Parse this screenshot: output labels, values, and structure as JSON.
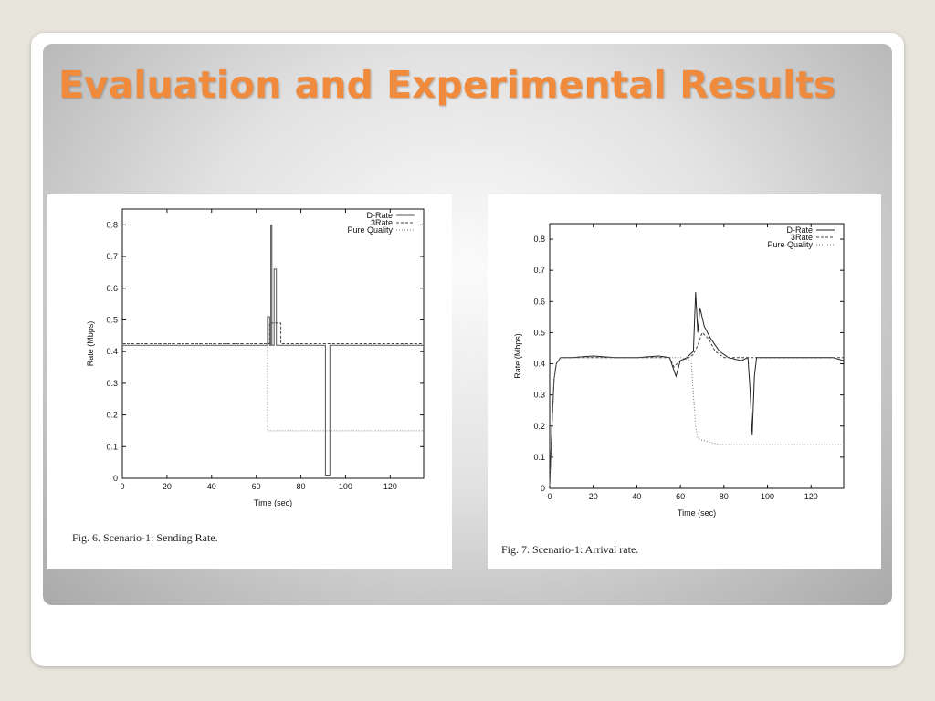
{
  "slide": {
    "title": "Evaluation and Experimental Results"
  },
  "chart_data": [
    {
      "type": "line",
      "caption": "Fig. 6.   Scenario-1: Sending Rate.",
      "xlabel": "Time (sec)",
      "ylabel": "Rate (Mbps)",
      "xlim": [
        0,
        135
      ],
      "ylim": [
        0,
        0.85
      ],
      "xticks": [
        0,
        20,
        40,
        60,
        80,
        100,
        120
      ],
      "yticks": [
        0,
        0.1,
        0.2,
        0.3,
        0.4,
        0.5,
        0.6,
        0.7,
        0.8
      ],
      "ytick_labels": [
        "0",
        "0.1",
        "0.2",
        "0.3",
        "0.4",
        "0.5",
        "0.6",
        "0.7",
        "0.8"
      ],
      "legend_position": "top-right",
      "grid": false,
      "series": [
        {
          "name": "D-Rate",
          "style": "solid",
          "color": "#555555",
          "points": [
            [
              0,
              0.42
            ],
            [
              65,
              0.42
            ],
            [
              65,
              0.51
            ],
            [
              66,
              0.51
            ],
            [
              66,
              0.42
            ],
            [
              66.5,
              0.42
            ],
            [
              66.5,
              0.8
            ],
            [
              67,
              0.8
            ],
            [
              67,
              0.42
            ],
            [
              68,
              0.42
            ],
            [
              68,
              0.66
            ],
            [
              69,
              0.66
            ],
            [
              69,
              0.42
            ],
            [
              91,
              0.42
            ],
            [
              91,
              0.01
            ],
            [
              93,
              0.01
            ],
            [
              93,
              0.42
            ],
            [
              135,
              0.42
            ]
          ]
        },
        {
          "name": "3Rate",
          "style": "dashed",
          "color": "#444444",
          "points": [
            [
              0,
              0.425
            ],
            [
              66,
              0.425
            ],
            [
              66,
              0.49
            ],
            [
              71,
              0.49
            ],
            [
              71,
              0.425
            ],
            [
              135,
              0.425
            ]
          ]
        },
        {
          "name": "Pure Quality",
          "style": "dotted",
          "color": "#777777",
          "points": [
            [
              0,
              0.425
            ],
            [
              65,
              0.425
            ],
            [
              65,
              0.15
            ],
            [
              135,
              0.15
            ]
          ]
        }
      ]
    },
    {
      "type": "line",
      "caption": "Fig. 7.   Scenario-1: Arrival rate.",
      "xlabel": "Time (sec)",
      "ylabel": "Rate (Mbps)",
      "xlim": [
        0,
        135
      ],
      "ylim": [
        0,
        0.85
      ],
      "xticks": [
        0,
        20,
        40,
        60,
        80,
        100,
        120
      ],
      "yticks": [
        0,
        0.1,
        0.2,
        0.3,
        0.4,
        0.5,
        0.6,
        0.7,
        0.8
      ],
      "ytick_labels": [
        "0",
        "0.1",
        "0.2",
        "0.3",
        "0.4",
        "0.5",
        "0.6",
        "0.7",
        "0.8"
      ],
      "legend_position": "top-right",
      "grid": false,
      "series": [
        {
          "name": "D-Rate",
          "style": "solid",
          "color": "#222222",
          "points": [
            [
              0,
              0.01
            ],
            [
              1,
              0.2
            ],
            [
              2,
              0.35
            ],
            [
              3,
              0.4
            ],
            [
              5,
              0.42
            ],
            [
              10,
              0.42
            ],
            [
              20,
              0.425
            ],
            [
              30,
              0.42
            ],
            [
              40,
              0.42
            ],
            [
              50,
              0.425
            ],
            [
              55,
              0.42
            ],
            [
              57,
              0.38
            ],
            [
              58,
              0.36
            ],
            [
              60,
              0.41
            ],
            [
              63,
              0.42
            ],
            [
              66,
              0.44
            ],
            [
              67,
              0.63
            ],
            [
              68,
              0.5
            ],
            [
              69,
              0.58
            ],
            [
              71,
              0.52
            ],
            [
              74,
              0.48
            ],
            [
              78,
              0.44
            ],
            [
              82,
              0.42
            ],
            [
              88,
              0.41
            ],
            [
              91,
              0.42
            ],
            [
              92,
              0.32
            ],
            [
              93,
              0.17
            ],
            [
              94,
              0.36
            ],
            [
              95,
              0.42
            ],
            [
              100,
              0.42
            ],
            [
              110,
              0.42
            ],
            [
              120,
              0.42
            ],
            [
              130,
              0.42
            ],
            [
              135,
              0.41
            ]
          ]
        },
        {
          "name": "3Rate",
          "style": "dashed",
          "color": "#444444",
          "points": [
            [
              0,
              0.01
            ],
            [
              1,
              0.2
            ],
            [
              2,
              0.35
            ],
            [
              3,
              0.4
            ],
            [
              5,
              0.42
            ],
            [
              20,
              0.42
            ],
            [
              40,
              0.42
            ],
            [
              55,
              0.42
            ],
            [
              57,
              0.39
            ],
            [
              60,
              0.41
            ],
            [
              64,
              0.42
            ],
            [
              66,
              0.43
            ],
            [
              68,
              0.46
            ],
            [
              70,
              0.5
            ],
            [
              73,
              0.48
            ],
            [
              76,
              0.44
            ],
            [
              80,
              0.42
            ],
            [
              90,
              0.42
            ],
            [
              100,
              0.42
            ],
            [
              120,
              0.42
            ],
            [
              135,
              0.42
            ]
          ]
        },
        {
          "name": "Pure Quality",
          "style": "dotted",
          "color": "#777777",
          "points": [
            [
              0,
              0.01
            ],
            [
              1,
              0.2
            ],
            [
              2,
              0.35
            ],
            [
              3,
              0.4
            ],
            [
              5,
              0.42
            ],
            [
              20,
              0.42
            ],
            [
              40,
              0.42
            ],
            [
              60,
              0.42
            ],
            [
              65,
              0.41
            ],
            [
              66,
              0.3
            ],
            [
              67,
              0.2
            ],
            [
              68,
              0.16
            ],
            [
              70,
              0.155
            ],
            [
              75,
              0.145
            ],
            [
              80,
              0.14
            ],
            [
              100,
              0.14
            ],
            [
              120,
              0.14
            ],
            [
              135,
              0.14
            ]
          ]
        }
      ]
    }
  ]
}
